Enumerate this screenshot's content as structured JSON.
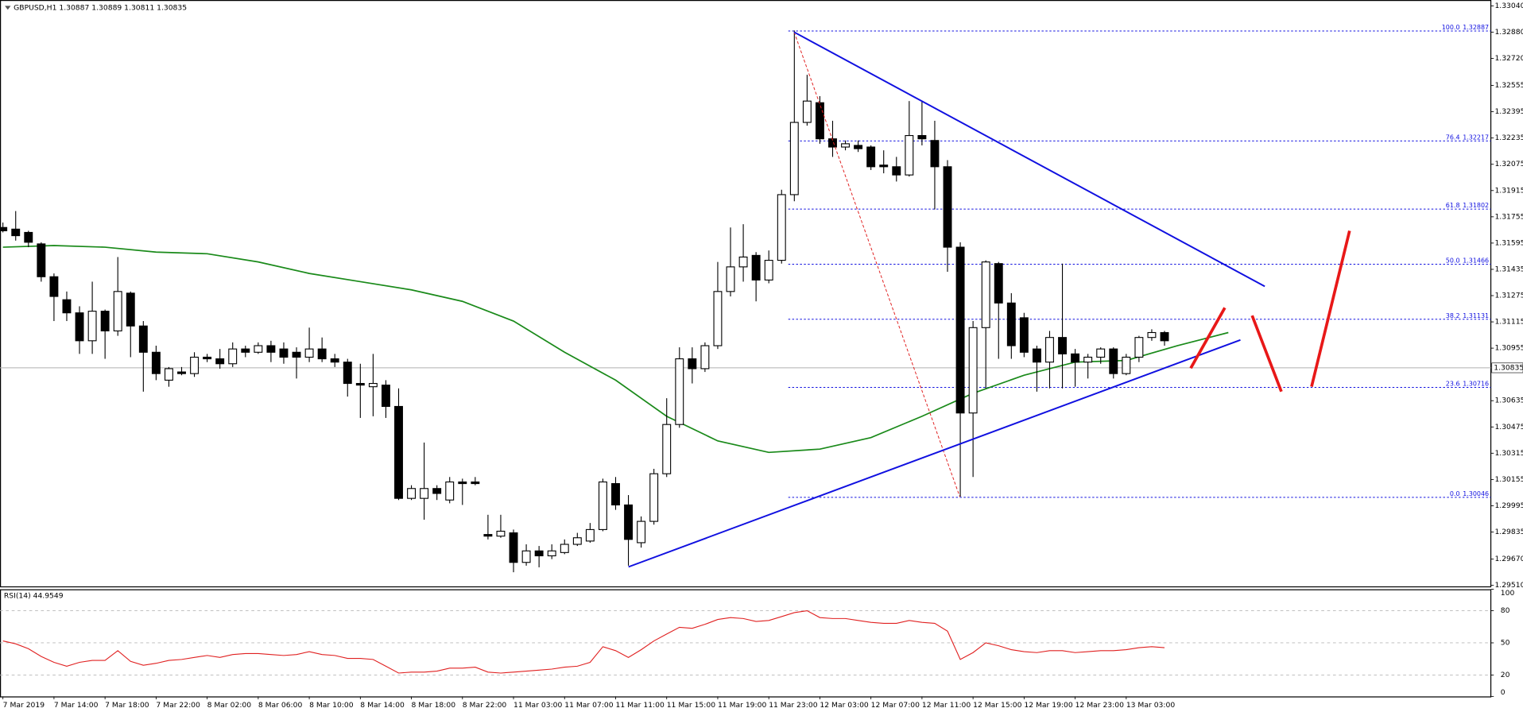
{
  "chart_data": {
    "type": "candlestick",
    "title": "GBPUSD,H1 1.30887 1.30889 1.30811 1.30835",
    "categories": [
      "7 Mar 2019",
      null,
      null,
      null,
      "7 Mar 14:00",
      null,
      null,
      null,
      "7 Mar 18:00",
      null,
      null,
      null,
      "7 Mar 22:00",
      null,
      null,
      null,
      "8 Mar 02:00",
      null,
      null,
      null,
      "8 Mar 06:00",
      null,
      null,
      null,
      "8 Mar 10:00",
      null,
      null,
      null,
      "8 Mar 14:00",
      null,
      null,
      null,
      "8 Mar 18:00",
      null,
      null,
      null,
      "8 Mar 22:00",
      null,
      null,
      null,
      "11 Mar 03:00",
      null,
      null,
      null,
      "11 Mar 07:00",
      null,
      null,
      null,
      "11 Mar 11:00",
      null,
      null,
      null,
      "11 Mar 15:00",
      null,
      null,
      null,
      "11 Mar 19:00",
      null,
      null,
      null,
      "11 Mar 23:00",
      null,
      null,
      null,
      "12 Mar 03:00",
      null,
      null,
      null,
      "12 Mar 07:00",
      null,
      null,
      null,
      "12 Mar 11:00",
      null,
      null,
      null,
      "12 Mar 15:00",
      null,
      null,
      null,
      "12 Mar 19:00",
      null,
      null,
      null,
      "12 Mar 23:00",
      null,
      null,
      null,
      "13 Mar 03:00",
      null,
      null,
      null
    ],
    "candles": [
      [
        1.3169,
        1.3172,
        1.3166,
        1.3167
      ],
      [
        1.3168,
        1.3179,
        1.3161,
        1.3164
      ],
      [
        1.3166,
        1.3167,
        1.3157,
        1.316
      ],
      [
        1.3159,
        1.316,
        1.3136,
        1.3139
      ],
      [
        1.3139,
        1.3141,
        1.3112,
        1.3127
      ],
      [
        1.3125,
        1.313,
        1.3112,
        1.3117
      ],
      [
        1.3117,
        1.3121,
        1.3092,
        1.31
      ],
      [
        1.31,
        1.3136,
        1.3092,
        1.3118
      ],
      [
        1.3118,
        1.3119,
        1.3089,
        1.3106
      ],
      [
        1.3106,
        1.3151,
        1.3103,
        1.313
      ],
      [
        1.3129,
        1.313,
        1.309,
        1.3109
      ],
      [
        1.3109,
        1.3112,
        1.3069,
        1.3093
      ],
      [
        1.3093,
        1.3097,
        1.3076,
        1.308
      ],
      [
        1.3076,
        1.3084,
        1.3072,
        1.3083
      ],
      [
        1.3081,
        1.3084,
        1.3079,
        1.308
      ],
      [
        1.308,
        1.3093,
        1.3078,
        1.309
      ],
      [
        1.309,
        1.3092,
        1.3087,
        1.3089
      ],
      [
        1.3089,
        1.3095,
        1.3083,
        1.3086
      ],
      [
        1.3086,
        1.3099,
        1.3084,
        1.3095
      ],
      [
        1.3095,
        1.3097,
        1.309,
        1.3093
      ],
      [
        1.3093,
        1.3099,
        1.3092,
        1.3097
      ],
      [
        1.3097,
        1.31,
        1.3087,
        1.3093
      ],
      [
        1.3095,
        1.3099,
        1.3086,
        1.309
      ],
      [
        1.3093,
        1.3096,
        1.3077,
        1.309
      ],
      [
        1.309,
        1.3108,
        1.3087,
        1.3095
      ],
      [
        1.3095,
        1.3102,
        1.3087,
        1.3089
      ],
      [
        1.3089,
        1.3092,
        1.3084,
        1.3087
      ],
      [
        1.3087,
        1.3089,
        1.3066,
        1.3074
      ],
      [
        1.3074,
        1.3086,
        1.3053,
        1.3073
      ],
      [
        1.3072,
        1.3092,
        1.3054,
        1.3074
      ],
      [
        1.3073,
        1.3076,
        1.3053,
        1.306
      ],
      [
        1.306,
        1.3071,
        1.3003,
        1.3004
      ],
      [
        1.3004,
        1.3012,
        1.3003,
        1.301
      ],
      [
        1.3004,
        1.3038,
        1.2991,
        1.301
      ],
      [
        1.301,
        1.3012,
        1.3003,
        1.3007
      ],
      [
        1.3003,
        1.3017,
        1.3001,
        1.3014
      ],
      [
        1.3014,
        1.3016,
        1.3,
        1.3013
      ],
      [
        1.3014,
        1.3017,
        1.3012,
        1.3013
      ],
      [
        1.2982,
        1.2994,
        1.2979,
        1.2981
      ],
      [
        1.2981,
        1.2994,
        1.298,
        1.2984
      ],
      [
        1.2983,
        1.2985,
        1.2959,
        1.2965
      ],
      [
        1.2965,
        1.2976,
        1.2963,
        1.2972
      ],
      [
        1.2972,
        1.2975,
        1.2962,
        1.2969
      ],
      [
        1.2969,
        1.2976,
        1.2967,
        1.2972
      ],
      [
        1.2971,
        1.2979,
        1.297,
        1.2976
      ],
      [
        1.2976,
        1.2983,
        1.2975,
        1.298
      ],
      [
        1.2978,
        1.2989,
        1.2977,
        1.2985
      ],
      [
        1.2985,
        1.3016,
        1.2984,
        1.3014
      ],
      [
        1.3013,
        1.3017,
        1.2997,
        1.3
      ],
      [
        1.3,
        1.3006,
        1.2963,
        1.2979
      ],
      [
        1.2977,
        1.2993,
        1.2974,
        1.299
      ],
      [
        1.299,
        1.3022,
        1.2988,
        1.3019
      ],
      [
        1.3019,
        1.3065,
        1.3017,
        1.3049
      ],
      [
        1.3049,
        1.3096,
        1.3047,
        1.3089
      ],
      [
        1.3089,
        1.3096,
        1.3074,
        1.3083
      ],
      [
        1.3083,
        1.3099,
        1.3081,
        1.3097
      ],
      [
        1.3097,
        1.3148,
        1.3095,
        1.313
      ],
      [
        1.313,
        1.3169,
        1.3127,
        1.3145
      ],
      [
        1.3145,
        1.3171,
        1.3136,
        1.3151
      ],
      [
        1.3152,
        1.3154,
        1.3124,
        1.3137
      ],
      [
        1.3137,
        1.3155,
        1.3135,
        1.3149
      ],
      [
        1.3149,
        1.3192,
        1.3147,
        1.3189
      ],
      [
        1.3189,
        1.3289,
        1.3185,
        1.3233
      ],
      [
        1.3233,
        1.3262,
        1.3231,
        1.3246
      ],
      [
        1.3245,
        1.3249,
        1.322,
        1.3223
      ],
      [
        1.3223,
        1.3234,
        1.3212,
        1.3218
      ],
      [
        1.3218,
        1.3222,
        1.3216,
        1.322
      ],
      [
        1.3219,
        1.3222,
        1.3215,
        1.3217
      ],
      [
        1.3218,
        1.3219,
        1.3204,
        1.3206
      ],
      [
        1.3207,
        1.3216,
        1.3202,
        1.3206
      ],
      [
        1.3206,
        1.3212,
        1.3197,
        1.3201
      ],
      [
        1.3201,
        1.3246,
        1.32,
        1.3225
      ],
      [
        1.3225,
        1.3246,
        1.3219,
        1.3223
      ],
      [
        1.3222,
        1.3234,
        1.318,
        1.3206
      ],
      [
        1.3206,
        1.321,
        1.3142,
        1.3157
      ],
      [
        1.3157,
        1.316,
        1.3005,
        1.3056
      ],
      [
        1.3056,
        1.3112,
        1.3017,
        1.3108
      ],
      [
        1.3108,
        1.3149,
        1.3071,
        1.3148
      ],
      [
        1.3147,
        1.3148,
        1.3089,
        1.3123
      ],
      [
        1.3123,
        1.3129,
        1.3089,
        1.3097
      ],
      [
        1.3114,
        1.3117,
        1.309,
        1.3093
      ],
      [
        1.3095,
        1.3097,
        1.3069,
        1.3087
      ],
      [
        1.3087,
        1.3106,
        1.3071,
        1.3102
      ],
      [
        1.3102,
        1.3147,
        1.3071,
        1.3092
      ],
      [
        1.3092,
        1.3095,
        1.3072,
        1.3087
      ],
      [
        1.3087,
        1.3092,
        1.3077,
        1.309
      ],
      [
        1.309,
        1.3096,
        1.3086,
        1.3095
      ],
      [
        1.3095,
        1.3096,
        1.3077,
        1.308
      ],
      [
        1.308,
        1.3092,
        1.3079,
        1.309
      ],
      [
        1.309,
        1.3103,
        1.3087,
        1.3102
      ],
      [
        1.3102,
        1.3107,
        1.31,
        1.3105
      ],
      [
        1.3105,
        1.3106,
        1.3097,
        1.31
      ]
    ],
    "ma": {
      "color": "#1a8a1a",
      "x": [
        0,
        4,
        8,
        12,
        16,
        20,
        24,
        28,
        32,
        36,
        40,
        44,
        48,
        52,
        56,
        60,
        64,
        68,
        72,
        76,
        80,
        84,
        88,
        92,
        96
      ],
      "values": [
        1.3157,
        1.3158,
        1.3157,
        1.3154,
        1.3153,
        1.3148,
        1.3141,
        1.3136,
        1.3131,
        1.3124,
        1.3112,
        1.3093,
        1.3076,
        1.3054,
        1.3039,
        1.3032,
        1.3034,
        1.3041,
        1.3054,
        1.3068,
        1.3079,
        1.3087,
        1.3088,
        1.3097,
        1.3105
      ]
    },
    "ylim": [
      1.2951,
      1.3304
    ],
    "yticks": [
      {
        "value": 1.3304,
        "label": "1.33040"
      },
      {
        "value": 1.3288,
        "label": "1.32880"
      },
      {
        "value": 1.3272,
        "label": "1.32720"
      },
      {
        "value": 1.32555,
        "label": "1.32555"
      },
      {
        "value": 1.32395,
        "label": "1.32395"
      },
      {
        "value": 1.32235,
        "label": "1.32235"
      },
      {
        "value": 1.32075,
        "label": "1.32075"
      },
      {
        "value": 1.31915,
        "label": "1.31915"
      },
      {
        "value": 1.31755,
        "label": "1.31755"
      },
      {
        "value": 1.31595,
        "label": "1.31595"
      },
      {
        "value": 1.31435,
        "label": "1.31435"
      },
      {
        "value": 1.31275,
        "label": "1.31275"
      },
      {
        "value": 1.31115,
        "label": "1.31115"
      },
      {
        "value": 1.30955,
        "label": "1.30955"
      },
      {
        "value": 1.30635,
        "label": "1.30635"
      },
      {
        "value": 1.30475,
        "label": "1.30475"
      },
      {
        "value": 1.30315,
        "label": "1.30315"
      },
      {
        "value": 1.30155,
        "label": "1.30155"
      },
      {
        "value": 1.29995,
        "label": "1.29995"
      },
      {
        "value": 1.29835,
        "label": "1.29835"
      },
      {
        "value": 1.2967,
        "label": "1.29670"
      },
      {
        "value": 1.2951,
        "label": "1.29510"
      }
    ],
    "bid": 1.30835,
    "fibonacci": [
      {
        "level": "100.0",
        "price": 1.32887
      },
      {
        "level": "76.4",
        "price": 1.32217
      },
      {
        "level": "61.8",
        "price": 1.31802
      },
      {
        "level": "50.0",
        "price": 1.31466
      },
      {
        "level": "38.2",
        "price": 1.31131
      },
      {
        "level": "23.6",
        "price": 1.30716
      },
      {
        "level": "0.0",
        "price": 1.30046
      }
    ],
    "rsi": {
      "label": "RSI(14) 44.9549",
      "color": "#e02020",
      "ylim": [
        0,
        100
      ],
      "yticks": [
        0,
        20,
        50,
        80,
        100
      ],
      "levels": [
        20,
        50,
        80
      ],
      "values": [
        51.8,
        49.1,
        44.5,
        37.3,
        31.8,
        28.2,
        31.8,
        33.6,
        33.6,
        42.7,
        32.7,
        29.1,
        30.9,
        33.6,
        34.5,
        36.4,
        38.2,
        36.4,
        39.1,
        40.0,
        40.0,
        39.1,
        38.2,
        39.1,
        41.8,
        39.1,
        38.2,
        35.5,
        35.5,
        34.5,
        28.2,
        21.8,
        22.7,
        22.7,
        23.6,
        26.4,
        26.4,
        27.3,
        22.7,
        21.8,
        22.7,
        23.6,
        24.5,
        25.5,
        27.3,
        28.2,
        31.8,
        46.4,
        42.7,
        36.4,
        43.6,
        51.8,
        58.2,
        64.5,
        63.6,
        67.3,
        71.8,
        73.6,
        72.7,
        70.0,
        70.9,
        74.5,
        78.2,
        80.0,
        73.6,
        72.7,
        72.7,
        70.9,
        69.1,
        68.2,
        68.2,
        70.9,
        69.1,
        68.2,
        60.9,
        34.5,
        40.9,
        50.0,
        47.3,
        43.6,
        41.8,
        40.9,
        42.7,
        42.7,
        40.9,
        41.8,
        42.7,
        42.7,
        43.6,
        45.5,
        46.4,
        45.5
      ]
    }
  }
}
